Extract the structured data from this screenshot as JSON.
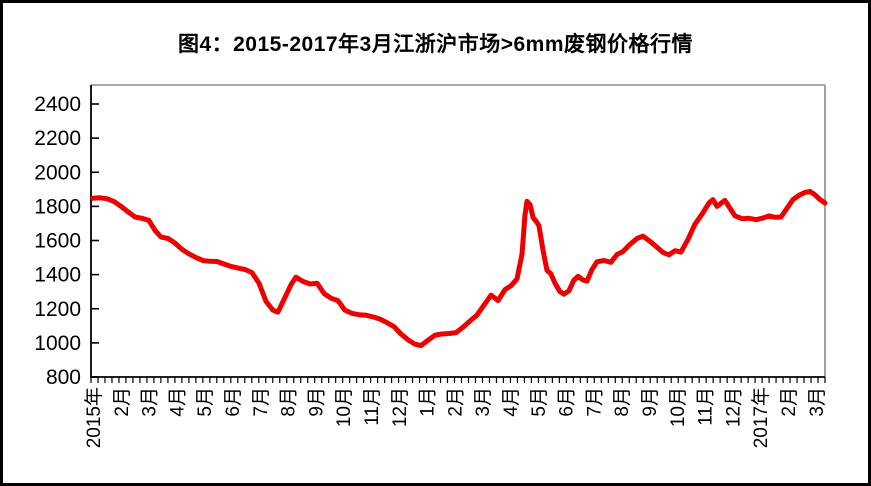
{
  "title": "图4：2015-2017年3月江浙沪市场>6mm废钢价格行情",
  "colors": {
    "line": "#EE0000",
    "axis": "#000000",
    "frame_gray": "#8A8A8A",
    "text": "#000000",
    "background": "#FFFFFF",
    "border": "#000000"
  },
  "chart_data": {
    "type": "line",
    "title": "图4：2015-2017年3月江浙沪市场>6mm废钢价格行情",
    "xlabel": "",
    "ylabel": "",
    "ylim": [
      800,
      2400
    ],
    "y_ticks": [
      800,
      1000,
      1200,
      1400,
      1600,
      1800,
      2000,
      2200,
      2400
    ],
    "x_tick_labels": [
      "2015年",
      "2月",
      "3月",
      "4月",
      "5月",
      "6月",
      "7月",
      "8月",
      "9月",
      "10月",
      "11月",
      "12月",
      "1月",
      "2月",
      "3月",
      "4月",
      "5月",
      "6月",
      "7月",
      "8月",
      "9月",
      "10月",
      "11月",
      "12月",
      "2017年",
      "2月",
      "3月"
    ],
    "x_range_months": 26.33,
    "grid": false,
    "legend_position": "none",
    "series": [
      {
        "name": "江浙沪市场>6mm废钢价格",
        "color": "#EE0000",
        "points": [
          [
            0,
            1848
          ],
          [
            0.25,
            1850
          ],
          [
            0.5,
            1845
          ],
          [
            0.76,
            1828
          ],
          [
            1.01,
            1800
          ],
          [
            1.26,
            1768
          ],
          [
            1.51,
            1738
          ],
          [
            1.76,
            1730
          ],
          [
            2.01,
            1718
          ],
          [
            2.23,
            1660
          ],
          [
            2.45,
            1620
          ],
          [
            2.7,
            1612
          ],
          [
            2.95,
            1585
          ],
          [
            3.2,
            1548
          ],
          [
            3.45,
            1522
          ],
          [
            3.71,
            1500
          ],
          [
            3.96,
            1482
          ],
          [
            4.21,
            1478
          ],
          [
            4.46,
            1477
          ],
          [
            4.71,
            1462
          ],
          [
            4.96,
            1448
          ],
          [
            5.22,
            1438
          ],
          [
            5.47,
            1430
          ],
          [
            5.72,
            1412
          ],
          [
            5.97,
            1350
          ],
          [
            6.22,
            1245
          ],
          [
            6.47,
            1192
          ],
          [
            6.65,
            1180
          ],
          [
            6.87,
            1255
          ],
          [
            7.12,
            1340
          ],
          [
            7.3,
            1385
          ],
          [
            7.55,
            1360
          ],
          [
            7.81,
            1345
          ],
          [
            8.06,
            1350
          ],
          [
            8.31,
            1290
          ],
          [
            8.56,
            1262
          ],
          [
            8.81,
            1248
          ],
          [
            9.06,
            1192
          ],
          [
            9.32,
            1173
          ],
          [
            9.57,
            1165
          ],
          [
            9.82,
            1162
          ],
          [
            10.07,
            1152
          ],
          [
            10.32,
            1140
          ],
          [
            10.58,
            1118
          ],
          [
            10.83,
            1095
          ],
          [
            11.08,
            1052
          ],
          [
            11.33,
            1018
          ],
          [
            11.58,
            992
          ],
          [
            11.8,
            984
          ],
          [
            12.05,
            1015
          ],
          [
            12.3,
            1045
          ],
          [
            12.55,
            1052
          ],
          [
            12.81,
            1055
          ],
          [
            13.06,
            1060
          ],
          [
            13.31,
            1092
          ],
          [
            13.56,
            1128
          ],
          [
            13.81,
            1162
          ],
          [
            14.06,
            1220
          ],
          [
            14.32,
            1280
          ],
          [
            14.57,
            1248
          ],
          [
            14.82,
            1312
          ],
          [
            15.04,
            1335
          ],
          [
            15.25,
            1375
          ],
          [
            15.43,
            1520
          ],
          [
            15.54,
            1750
          ],
          [
            15.61,
            1830
          ],
          [
            15.72,
            1810
          ],
          [
            15.83,
            1735
          ],
          [
            15.94,
            1712
          ],
          [
            16.04,
            1688
          ],
          [
            16.19,
            1540
          ],
          [
            16.33,
            1425
          ],
          [
            16.47,
            1405
          ],
          [
            16.62,
            1350
          ],
          [
            16.8,
            1300
          ],
          [
            16.94,
            1285
          ],
          [
            17.12,
            1305
          ],
          [
            17.3,
            1368
          ],
          [
            17.45,
            1390
          ],
          [
            17.63,
            1368
          ],
          [
            17.77,
            1362
          ],
          [
            17.95,
            1430
          ],
          [
            18.13,
            1475
          ],
          [
            18.38,
            1483
          ],
          [
            18.63,
            1472
          ],
          [
            18.85,
            1518
          ],
          [
            19.06,
            1535
          ],
          [
            19.32,
            1578
          ],
          [
            19.57,
            1612
          ],
          [
            19.78,
            1625
          ],
          [
            20.04,
            1595
          ],
          [
            20.29,
            1560
          ],
          [
            20.5,
            1530
          ],
          [
            20.72,
            1516
          ],
          [
            20.94,
            1540
          ],
          [
            21.15,
            1532
          ],
          [
            21.4,
            1605
          ],
          [
            21.65,
            1695
          ],
          [
            21.91,
            1755
          ],
          [
            22.16,
            1820
          ],
          [
            22.3,
            1840
          ],
          [
            22.45,
            1800
          ],
          [
            22.59,
            1818
          ],
          [
            22.73,
            1835
          ],
          [
            22.91,
            1790
          ],
          [
            23.09,
            1745
          ],
          [
            23.35,
            1728
          ],
          [
            23.6,
            1730
          ],
          [
            23.85,
            1722
          ],
          [
            24.1,
            1732
          ],
          [
            24.32,
            1744
          ],
          [
            24.53,
            1736
          ],
          [
            24.75,
            1738
          ],
          [
            24.96,
            1788
          ],
          [
            25.18,
            1840
          ],
          [
            25.4,
            1865
          ],
          [
            25.61,
            1882
          ],
          [
            25.79,
            1888
          ],
          [
            25.97,
            1868
          ],
          [
            26.15,
            1840
          ],
          [
            26.33,
            1820
          ]
        ]
      }
    ]
  }
}
